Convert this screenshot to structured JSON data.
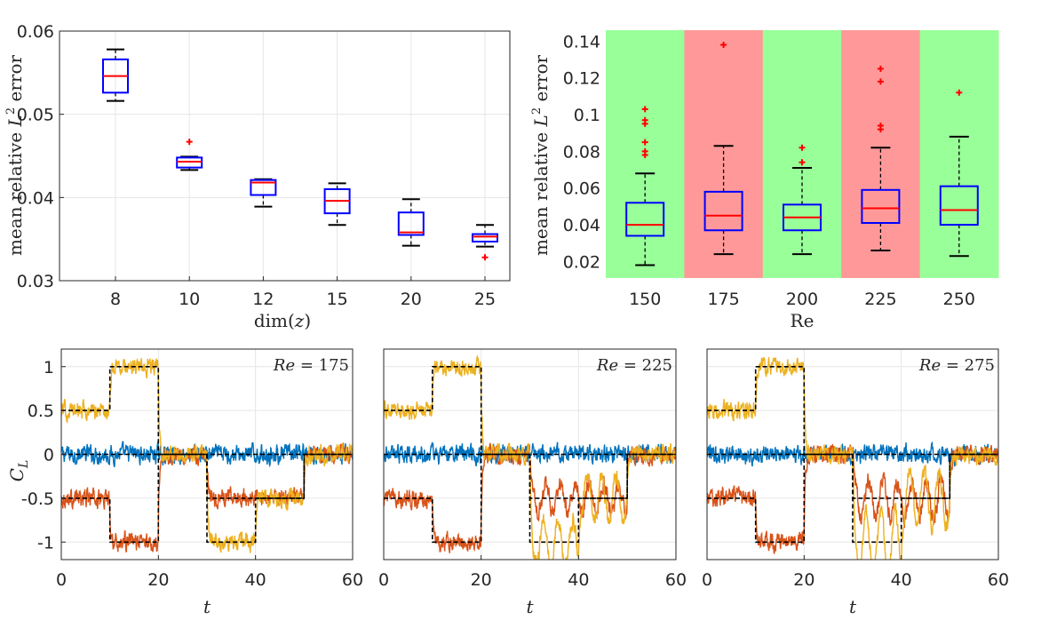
{
  "chart_data": [
    {
      "type": "box",
      "panel": "top-left",
      "categories": [
        "8",
        "10",
        "12",
        "15",
        "20",
        "25"
      ],
      "boxes": [
        {
          "q1": 0.0526,
          "median": 0.0546,
          "q3": 0.0566,
          "wlo": 0.0516,
          "whi": 0.0578,
          "outliers": []
        },
        {
          "q1": 0.0436,
          "median": 0.0443,
          "q3": 0.0448,
          "wlo": 0.0433,
          "whi": 0.0449,
          "outliers": [
            0.0467
          ]
        },
        {
          "q1": 0.0403,
          "median": 0.0418,
          "q3": 0.0421,
          "wlo": 0.0389,
          "whi": 0.0422,
          "outliers": []
        },
        {
          "q1": 0.0381,
          "median": 0.0396,
          "q3": 0.041,
          "wlo": 0.0367,
          "whi": 0.0417,
          "outliers": []
        },
        {
          "q1": 0.0355,
          "median": 0.0358,
          "q3": 0.0382,
          "wlo": 0.0342,
          "whi": 0.0398,
          "outliers": []
        },
        {
          "q1": 0.0347,
          "median": 0.0353,
          "q3": 0.0356,
          "wlo": 0.0341,
          "whi": 0.0367,
          "outliers": [
            0.0328
          ]
        }
      ],
      "ylim": [
        0.03,
        0.06
      ],
      "yticks": [
        "0.03",
        "0.04",
        "0.05",
        "0.06"
      ],
      "xlabel_pre": "dim(",
      "xlabel_var": "z",
      "xlabel_post": ")",
      "ylabel_pre": "mean relative ",
      "ylabel_var": "L",
      "ylabel_sup": "2",
      "ylabel_post": " error",
      "colors": {
        "box": "#0000ff",
        "median": "#ff0000",
        "whisker": "#000000",
        "outlier": "#ff0000"
      }
    },
    {
      "type": "box",
      "panel": "top-right",
      "categories": [
        "150",
        "175",
        "200",
        "225",
        "250"
      ],
      "background": [
        "#99ff99",
        "#ff9999",
        "#99ff99",
        "#ff9999",
        "#99ff99"
      ],
      "boxes": [
        {
          "q1": 0.034,
          "median": 0.04,
          "q3": 0.052,
          "wlo": 0.018,
          "whi": 0.068,
          "outliers": [
            0.103,
            0.097,
            0.095,
            0.085,
            0.08,
            0.078
          ]
        },
        {
          "q1": 0.037,
          "median": 0.045,
          "q3": 0.058,
          "wlo": 0.024,
          "whi": 0.083,
          "outliers": [
            0.138
          ]
        },
        {
          "q1": 0.037,
          "median": 0.044,
          "q3": 0.051,
          "wlo": 0.024,
          "whi": 0.071,
          "outliers": [
            0.082,
            0.074
          ]
        },
        {
          "q1": 0.041,
          "median": 0.049,
          "q3": 0.059,
          "wlo": 0.026,
          "whi": 0.082,
          "outliers": [
            0.125,
            0.118,
            0.094,
            0.092
          ]
        },
        {
          "q1": 0.04,
          "median": 0.048,
          "q3": 0.061,
          "wlo": 0.023,
          "whi": 0.088,
          "outliers": [
            0.112
          ]
        }
      ],
      "ylim": [
        0.011,
        0.146
      ],
      "yticks": [
        "0.02",
        "0.04",
        "0.06",
        "0.08",
        "0.1",
        "0.12",
        "0.14"
      ],
      "xlabel": "Re",
      "ylabel_pre": "mean relative ",
      "ylabel_var": "L",
      "ylabel_sup": "2",
      "ylabel_post": " error"
    },
    {
      "type": "line",
      "panel": "bottom-row",
      "xlim": [
        0,
        60
      ],
      "ylim": [
        -1.2,
        1.2
      ],
      "xticks": [
        "0",
        "20",
        "40",
        "60"
      ],
      "yticks": [
        "-1",
        "-0.5",
        "0",
        "0.5",
        "1"
      ],
      "xlabel": "t",
      "ylabel_var": "C",
      "ylabel_sub": "L",
      "series_colors": [
        "#0072bd",
        "#d95319",
        "#edb120"
      ],
      "target_color": "#000000",
      "reference": {
        "blue": [
          [
            0,
            0
          ],
          [
            60,
            0
          ]
        ],
        "orange": [
          [
            0,
            -0.5
          ],
          [
            10,
            -0.5
          ],
          [
            10,
            -1
          ],
          [
            20,
            -1
          ],
          [
            20,
            0
          ],
          [
            30,
            0
          ],
          [
            30,
            -0.5
          ],
          [
            50,
            -0.5
          ],
          [
            50,
            0
          ],
          [
            60,
            0
          ]
        ],
        "yellow": [
          [
            0,
            0.5
          ],
          [
            10,
            0.5
          ],
          [
            10,
            1
          ],
          [
            20,
            1
          ],
          [
            20,
            0
          ],
          [
            30,
            0
          ],
          [
            30,
            -1
          ],
          [
            40,
            -1
          ],
          [
            40,
            -0.5
          ],
          [
            50,
            -0.5
          ],
          [
            50,
            0
          ],
          [
            60,
            0
          ]
        ]
      },
      "panels": [
        {
          "annotation_var": "Re",
          "annotation_val": " = 175",
          "osc": 0.0,
          "follow": 1.0
        },
        {
          "annotation_var": "Re",
          "annotation_val": " = 225",
          "osc": 0.26,
          "follow": 0.6
        },
        {
          "annotation_var": "Re",
          "annotation_val": " = 275",
          "osc": 0.34,
          "follow": 0.45
        }
      ]
    }
  ]
}
